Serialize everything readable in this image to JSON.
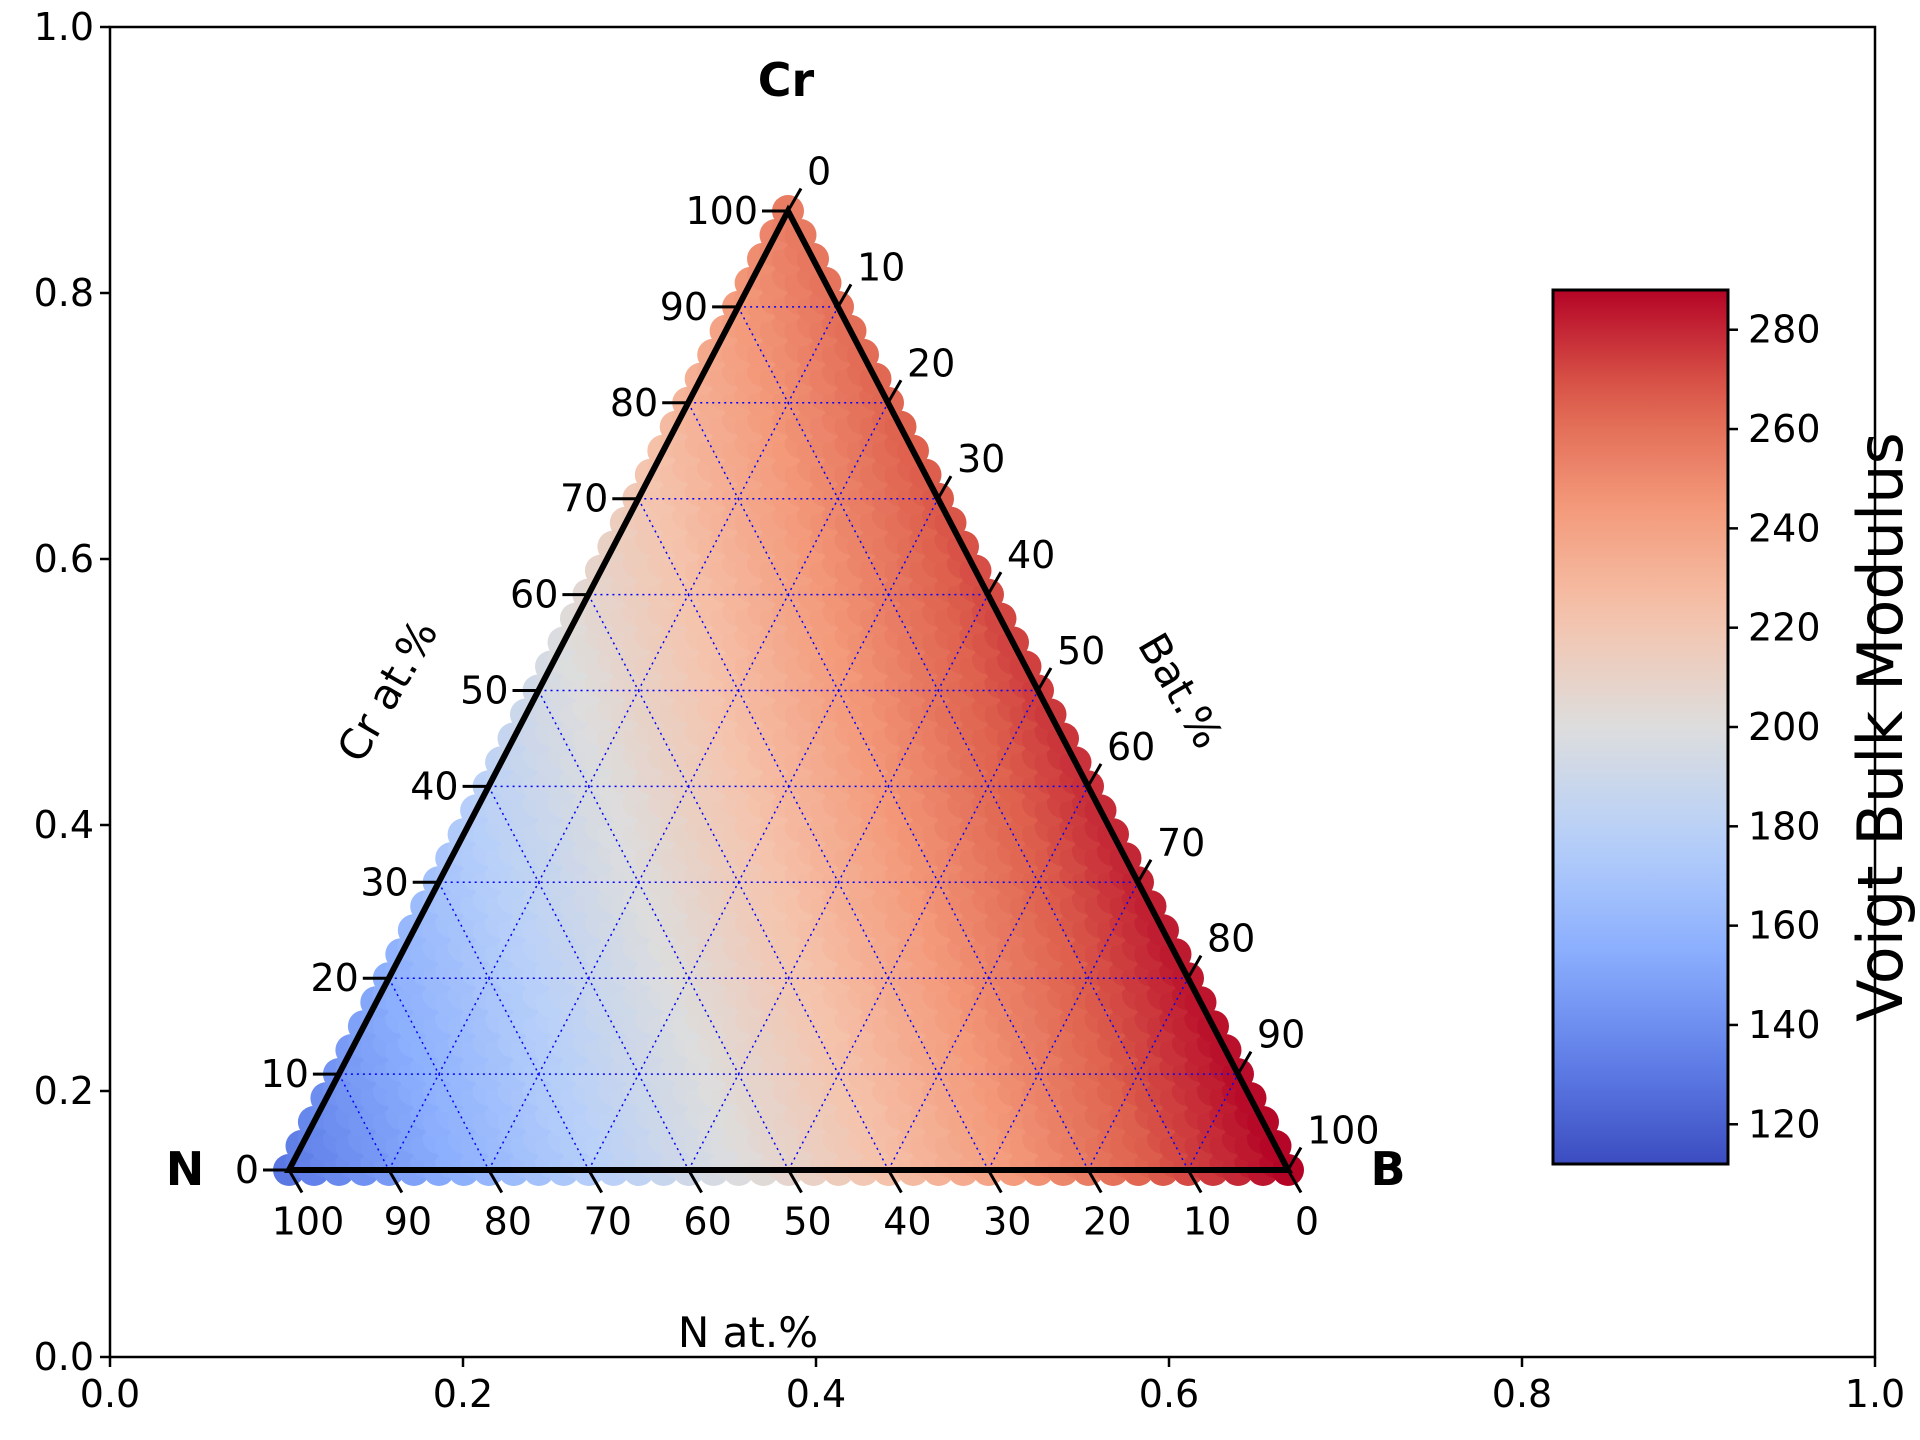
{
  "chart_data": {
    "type": "ternary-scatter",
    "vertices": {
      "top": "Cr",
      "left": "N",
      "right": "B"
    },
    "axis_labels": {
      "left": "Cr at.%",
      "right": "Bat.%",
      "bottom": "N at.%"
    },
    "ternary_ticks": {
      "left": [
        "0",
        "10",
        "20",
        "30",
        "40",
        "50",
        "60",
        "70",
        "80",
        "90",
        "100"
      ],
      "right": [
        "0",
        "10",
        "20",
        "30",
        "40",
        "50",
        "60",
        "70",
        "80",
        "90",
        "100"
      ],
      "bottom": [
        "100",
        "90",
        "80",
        "70",
        "60",
        "50",
        "40",
        "30",
        "20",
        "10",
        "0"
      ]
    },
    "cartesian_axes": {
      "xlim": [
        0,
        1
      ],
      "ylim": [
        0,
        1
      ],
      "xticks": [
        "0.0",
        "0.2",
        "0.4",
        "0.6",
        "0.8",
        "1.0"
      ],
      "yticks": [
        "0.0",
        "0.2",
        "0.4",
        "0.6",
        "0.8",
        "1.0"
      ]
    },
    "colorbar": {
      "label": "Voigt Bulk Modulus",
      "range": [
        112,
        288
      ],
      "ticks": [
        "120",
        "140",
        "160",
        "180",
        "200",
        "220",
        "240",
        "260",
        "280"
      ],
      "colormap": "coolwarm"
    },
    "grid": {
      "style": "dotted",
      "color": "#0000ff",
      "step_percent": 10
    },
    "value_field": {
      "description_model": "bulk modulus as function of composition",
      "N_100": 130,
      "Cr_100": 255,
      "B_100": 288,
      "trend": "increases with B fraction, moderate with Cr, lowest near N"
    }
  }
}
